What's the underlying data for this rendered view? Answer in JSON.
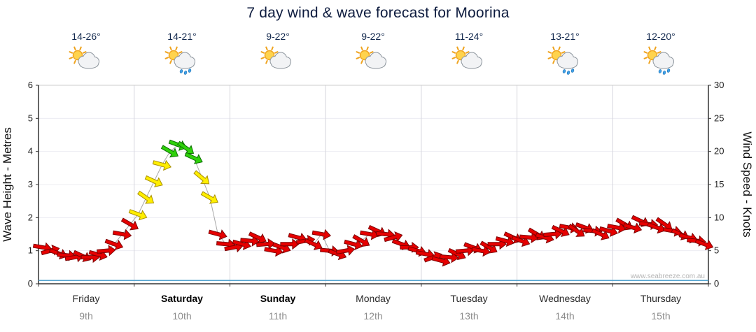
{
  "title": "7 day wind & wave forecast for Moorina",
  "watermark": "www.seabreeze.com.au",
  "axes": {
    "left_label": "Wave Height - Metres",
    "right_label": "Wind Speed - Knots",
    "left_ticks": [
      0,
      1,
      2,
      3,
      4,
      5,
      6
    ],
    "right_ticks": [
      0,
      5,
      10,
      15,
      20,
      25,
      30
    ]
  },
  "days": [
    {
      "name": "Friday",
      "date": "9th",
      "temp": "14-26°",
      "icon": "sun-cloud",
      "bold": false
    },
    {
      "name": "Saturday",
      "date": "10th",
      "temp": "14-21°",
      "icon": "sun-cloud-rain",
      "bold": true
    },
    {
      "name": "Sunday",
      "date": "11th",
      "temp": "9-22°",
      "icon": "sun-cloud",
      "bold": true
    },
    {
      "name": "Monday",
      "date": "12th",
      "temp": "9-22°",
      "icon": "sun-cloud",
      "bold": false
    },
    {
      "name": "Tuesday",
      "date": "13th",
      "temp": "11-24°",
      "icon": "sun-cloud",
      "bold": false
    },
    {
      "name": "Wednesday",
      "date": "14th",
      "temp": "13-21°",
      "icon": "sun-cloud-rain",
      "bold": false
    },
    {
      "name": "Thursday",
      "date": "15th",
      "temp": "12-20°",
      "icon": "sun-cloud-rain",
      "bold": false
    }
  ],
  "chart_data": {
    "type": "wind-arrows",
    "title": "7 day wind & wave forecast for Moorina",
    "samples_per_day": 12,
    "wave_axis": {
      "label": "Wave Height - Metres",
      "range": [
        0,
        6
      ],
      "ticks": [
        0,
        1,
        2,
        3,
        4,
        5,
        6
      ]
    },
    "wind_axis": {
      "label": "Wind Speed - Knots",
      "range": [
        0,
        30
      ],
      "ticks": [
        0,
        5,
        10,
        15,
        20,
        25,
        30
      ]
    },
    "arrow_colors": {
      "light_max_knots": 10,
      "moderate_max_knots": 19,
      "light": "#e60000",
      "moderate": "#ffee00",
      "fresh": "#2ed10a"
    },
    "wave_height_m": {
      "constant": 0.1
    },
    "wind_knots": [
      5.5,
      5.0,
      4.6,
      4.3,
      4.0,
      4.2,
      4.0,
      4.4,
      5.0,
      6.0,
      7.5,
      9.0,
      10.5,
      13,
      15.5,
      18,
      20,
      21,
      20.5,
      19,
      16,
      13,
      7.5,
      6,
      5.5,
      6.0,
      6.5,
      7.0,
      6.0,
      5.0,
      5.5,
      6.0,
      7.0,
      6.5,
      6.0,
      7.5,
      5.0,
      4.5,
      5.0,
      6.0,
      6.5,
      7.5,
      8.0,
      7.5,
      7.0,
      6.0,
      5.5,
      5.0,
      4.5,
      4.0,
      3.5,
      4.0,
      4.5,
      5.0,
      5.5,
      5.0,
      5.5,
      6.0,
      6.5,
      7.0,
      6.5,
      7.0,
      7.5,
      7.0,
      7.5,
      8.0,
      8.5,
      8.0,
      8.5,
      8.0,
      7.5,
      8.0,
      8.5,
      9.0,
      8.5,
      9.5,
      9.0,
      8.5,
      9.0,
      8.0,
      7.5,
      7.0,
      6.5,
      6.0
    ],
    "wind_dir_deg": [
      10,
      -15,
      20,
      5,
      -10,
      25,
      0,
      15,
      -5,
      20,
      10,
      30,
      20,
      35,
      25,
      15,
      30,
      20,
      35,
      25,
      40,
      30,
      15,
      5,
      -10,
      15,
      5,
      25,
      -5,
      10,
      20,
      0,
      15,
      -10,
      25,
      10,
      5,
      20,
      -10,
      15,
      30,
      10,
      25,
      5,
      -15,
      20,
      0,
      15,
      10,
      -20,
      15,
      5,
      25,
      -5,
      20,
      10,
      30,
      0,
      15,
      25,
      20,
      5,
      30,
      15,
      -5,
      25,
      10,
      35,
      20,
      5,
      25,
      15,
      10,
      30,
      15,
      25,
      5,
      20,
      35,
      10,
      25,
      15,
      5,
      20
    ]
  }
}
